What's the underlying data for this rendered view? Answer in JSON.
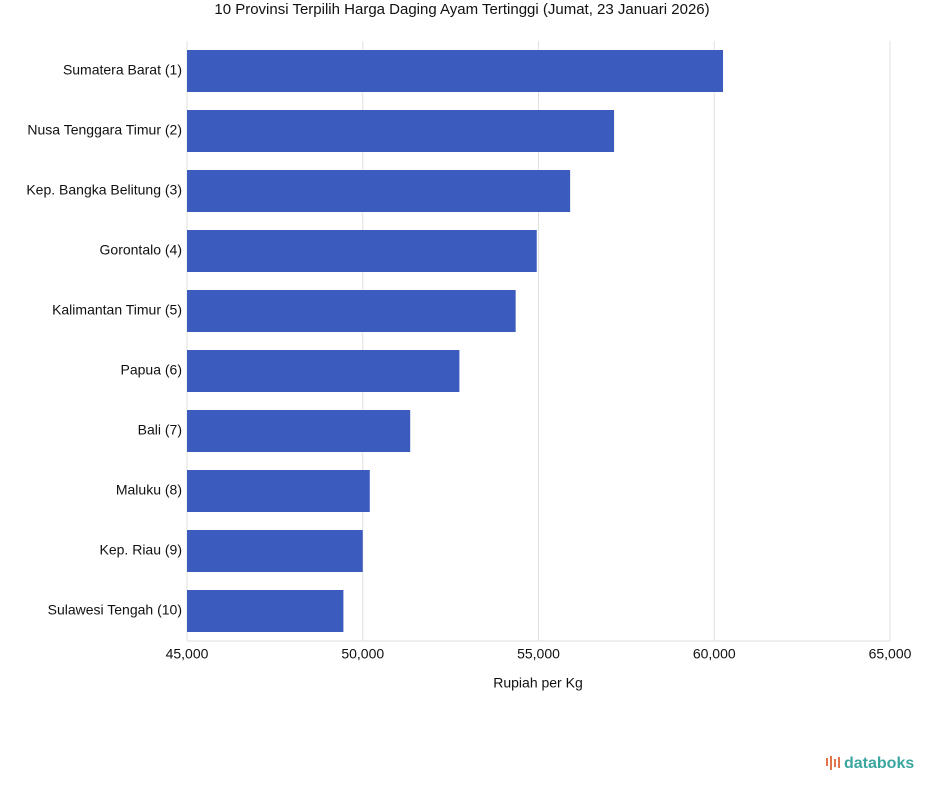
{
  "chart_data": {
    "type": "bar",
    "orientation": "horizontal",
    "title": "10 Provinsi Terpilih Harga Daging Ayam Tertinggi (Jumat, 23 Januari 2026)",
    "categories": [
      "Sumatera Barat (1)",
      "Nusa Tenggara Timur (2)",
      "Kep. Bangka Belitung (3)",
      "Gorontalo (4)",
      "Kalimantan Timur (5)",
      "Papua (6)",
      "Bali (7)",
      "Maluku (8)",
      "Kep. Riau (9)",
      "Sulawesi Tengah (10)"
    ],
    "values": [
      60250,
      57150,
      55900,
      54950,
      54350,
      52750,
      51350,
      50200,
      50000,
      49450
    ],
    "color": "#3b5bbf",
    "xlabel": "Rupiah per Kg",
    "xlim": [
      45000,
      65000
    ],
    "xticks": [
      {
        "value": 45000,
        "label": "45,000"
      },
      {
        "value": 50000,
        "label": "50,000"
      },
      {
        "value": 55000,
        "label": "55,000"
      },
      {
        "value": 60000,
        "label": "60,000"
      },
      {
        "value": 65000,
        "label": "65,000"
      }
    ],
    "grid": true,
    "watermark": "databoks"
  }
}
